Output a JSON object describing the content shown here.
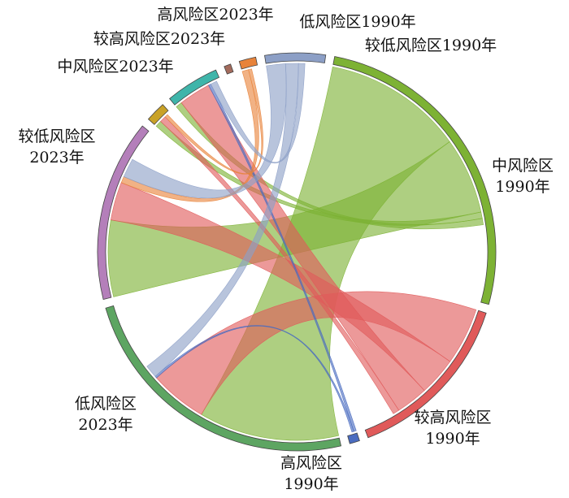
{
  "chart_data": {
    "type": "chord",
    "title": "",
    "segments": [
      {
        "id": "mid1990",
        "lines": [
          "中风险区",
          "1990年"
        ],
        "color": "#7db234",
        "value": 48
      },
      {
        "id": "higher1990",
        "lines": [
          "较高风险区",
          "1990年"
        ],
        "color": "#e05a5a",
        "value": 26
      },
      {
        "id": "high1990",
        "lines": [
          "高风险区",
          "1990年"
        ],
        "color": "#4a6cc0",
        "value": 1.5
      },
      {
        "id": "low2023",
        "lines": [
          "低风险区",
          "2023年"
        ],
        "color": "#5da562",
        "value": 44
      },
      {
        "id": "lower2023",
        "lines": [
          "较低风险区",
          "2023年"
        ],
        "color": "#b47fba",
        "value": 27
      },
      {
        "id": "mid2023",
        "lines": [
          "中风险区2023年"
        ],
        "color": "#c9a227",
        "value": 3
      },
      {
        "id": "higher2023",
        "lines": [
          "较高风险区2023年"
        ],
        "color": "#3fb5aa",
        "value": 8
      },
      {
        "id": "high2023",
        "lines": [
          "高风险区2023年"
        ],
        "color": "#a36b5c",
        "value": 1
      },
      {
        "id": "low1990",
        "lines": [
          "低风险区1990年"
        ],
        "color": "#e8833a",
        "value": 2.5
      },
      {
        "id": "lower1990",
        "lines": [
          "较低风险区1990年"
        ],
        "color": "#8c9fc6",
        "value": 9
      }
    ],
    "flows": [
      {
        "source": "mid1990",
        "target": "low2023",
        "value": 22
      },
      {
        "source": "mid1990",
        "target": "lower2023",
        "value": 12
      },
      {
        "source": "mid1990",
        "target": "mid2023",
        "value": 1
      },
      {
        "source": "mid1990",
        "target": "higher2023",
        "value": 1
      },
      {
        "source": "higher1990",
        "target": "low2023",
        "value": 9
      },
      {
        "source": "higher1990",
        "target": "lower2023",
        "value": 6
      },
      {
        "source": "higher1990",
        "target": "higher2023",
        "value": 5
      },
      {
        "source": "higher1990",
        "target": "mid2023",
        "value": 1
      },
      {
        "source": "high1990",
        "target": "higher2023",
        "value": 0.4
      },
      {
        "source": "high1990",
        "target": "low2023",
        "value": 0.3
      },
      {
        "source": "low1990",
        "target": "lower2023",
        "value": 1
      },
      {
        "source": "low1990",
        "target": "mid2023",
        "value": 0.5
      },
      {
        "source": "lower1990",
        "target": "lower2023",
        "value": 3
      },
      {
        "source": "lower1990",
        "target": "low2023",
        "value": 2
      },
      {
        "source": "lower1990",
        "target": "higher2023",
        "value": 1
      }
    ]
  }
}
